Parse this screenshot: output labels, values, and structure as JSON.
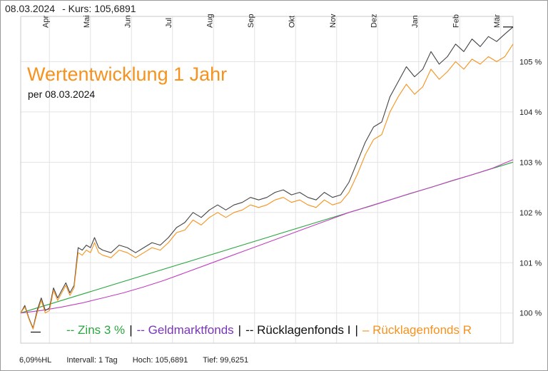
{
  "header": {
    "date": "08.03.2024",
    "kurs": "- Kurs: 105,6891"
  },
  "title": "Wertentwicklung 1 Jahr",
  "subtitle": "per 08.03.2024",
  "legend": [
    {
      "text": "-- Zins 3 %",
      "color": "#2ca640"
    },
    {
      "text": "-- Geldmarktfonds",
      "color": "#7a35b8"
    },
    {
      "text": "-- Rücklagenfonds I",
      "color": "#111111"
    },
    {
      "text": "– Rücklagenfonds R",
      "color": "#f7921e"
    }
  ],
  "footer": {
    "hl": "6,09%HL",
    "intervall": "Intervall: 1 Tag",
    "hoch": "Hoch: 105,6891",
    "tief": "Tief: 99,6251"
  },
  "chart_data": {
    "type": "line",
    "x_months": [
      "Apr",
      "Mai",
      "Jun",
      "Jul",
      "Aug",
      "Sep",
      "Okt",
      "Nov",
      "Dez",
      "Jan",
      "Feb",
      "Mär"
    ],
    "y_ticks": [
      "100 %",
      "101 %",
      "102 %",
      "103 %",
      "104 %",
      "105 %"
    ],
    "ylim": [
      99.4,
      105.9
    ],
    "xlim": [
      0,
      12
    ],
    "series": [
      {
        "name": "Zins 3 %",
        "color": "#2ca640",
        "x": [
          0,
          12
        ],
        "y": [
          100.0,
          103.0
        ]
      },
      {
        "name": "Geldmarktfonds",
        "color": "#c040c0",
        "x": [
          0,
          0.5,
          1,
          1.5,
          2,
          2.5,
          3,
          3.5,
          4,
          4.5,
          5,
          5.5,
          6,
          6.5,
          7,
          7.5,
          8,
          8.5,
          9,
          9.5,
          10,
          10.5,
          11,
          11.5,
          12
        ],
        "y": [
          100.0,
          100.05,
          100.12,
          100.2,
          100.3,
          100.4,
          100.52,
          100.65,
          100.8,
          100.95,
          101.1,
          101.25,
          101.4,
          101.55,
          101.7,
          101.85,
          102.0,
          102.12,
          102.25,
          102.38,
          102.5,
          102.63,
          102.75,
          102.88,
          103.05
        ]
      },
      {
        "name": "Rücklagenfonds I",
        "color": "#444444",
        "x": [
          0,
          0.1,
          0.2,
          0.3,
          0.4,
          0.5,
          0.6,
          0.7,
          0.8,
          0.9,
          1.0,
          1.1,
          1.2,
          1.3,
          1.4,
          1.5,
          1.6,
          1.7,
          1.8,
          1.9,
          2.0,
          2.2,
          2.4,
          2.6,
          2.8,
          3.0,
          3.2,
          3.4,
          3.6,
          3.8,
          4.0,
          4.2,
          4.4,
          4.6,
          4.8,
          5.0,
          5.2,
          5.4,
          5.6,
          5.8,
          6.0,
          6.2,
          6.4,
          6.6,
          6.8,
          7.0,
          7.2,
          7.4,
          7.6,
          7.8,
          8.0,
          8.2,
          8.4,
          8.6,
          8.8,
          9.0,
          9.2,
          9.4,
          9.6,
          9.8,
          10.0,
          10.2,
          10.4,
          10.6,
          10.8,
          11.0,
          11.2,
          11.4,
          11.6,
          11.8,
          12.0
        ],
        "y": [
          100.0,
          100.15,
          99.9,
          99.7,
          100.05,
          100.3,
          100.05,
          100.1,
          100.5,
          100.3,
          100.45,
          100.6,
          100.4,
          100.55,
          101.3,
          101.25,
          101.35,
          101.3,
          101.5,
          101.3,
          101.25,
          101.2,
          101.35,
          101.3,
          101.2,
          101.3,
          101.4,
          101.35,
          101.5,
          101.7,
          101.8,
          102.0,
          101.9,
          102.05,
          102.15,
          102.05,
          102.15,
          102.2,
          102.3,
          102.25,
          102.3,
          102.4,
          102.45,
          102.35,
          102.4,
          102.3,
          102.25,
          102.4,
          102.3,
          102.35,
          102.6,
          103.0,
          103.4,
          103.7,
          103.8,
          104.3,
          104.6,
          104.9,
          104.7,
          104.85,
          105.2,
          104.95,
          105.1,
          105.35,
          105.2,
          105.45,
          105.3,
          105.5,
          105.4,
          105.55,
          105.69
        ]
      },
      {
        "name": "Rücklagenfonds R",
        "color": "#f7921e",
        "x": [
          0,
          0.1,
          0.2,
          0.3,
          0.4,
          0.5,
          0.6,
          0.7,
          0.8,
          0.9,
          1.0,
          1.1,
          1.2,
          1.3,
          1.4,
          1.5,
          1.6,
          1.7,
          1.8,
          1.9,
          2.0,
          2.2,
          2.4,
          2.6,
          2.8,
          3.0,
          3.2,
          3.4,
          3.6,
          3.8,
          4.0,
          4.2,
          4.4,
          4.6,
          4.8,
          5.0,
          5.2,
          5.4,
          5.6,
          5.8,
          6.0,
          6.2,
          6.4,
          6.6,
          6.8,
          7.0,
          7.2,
          7.4,
          7.6,
          7.8,
          8.0,
          8.2,
          8.4,
          8.6,
          8.8,
          9.0,
          9.2,
          9.4,
          9.6,
          9.8,
          10.0,
          10.2,
          10.4,
          10.6,
          10.8,
          11.0,
          11.2,
          11.4,
          11.6,
          11.8,
          12.0
        ],
        "y": [
          100.0,
          100.12,
          99.88,
          99.68,
          100.0,
          100.25,
          100.0,
          100.05,
          100.45,
          100.25,
          100.4,
          100.55,
          100.35,
          100.5,
          101.2,
          101.15,
          101.25,
          101.2,
          101.4,
          101.2,
          101.15,
          101.1,
          101.25,
          101.2,
          101.1,
          101.2,
          101.3,
          101.25,
          101.4,
          101.6,
          101.65,
          101.85,
          101.75,
          101.9,
          102.0,
          101.9,
          102.0,
          102.05,
          102.15,
          102.1,
          102.15,
          102.25,
          102.3,
          102.2,
          102.25,
          102.15,
          102.1,
          102.25,
          102.15,
          102.2,
          102.4,
          102.75,
          103.15,
          103.45,
          103.55,
          104.0,
          104.3,
          104.55,
          104.35,
          104.5,
          104.85,
          104.65,
          104.8,
          105.0,
          104.85,
          105.05,
          104.95,
          105.1,
          105.0,
          105.1,
          105.35
        ]
      }
    ]
  }
}
